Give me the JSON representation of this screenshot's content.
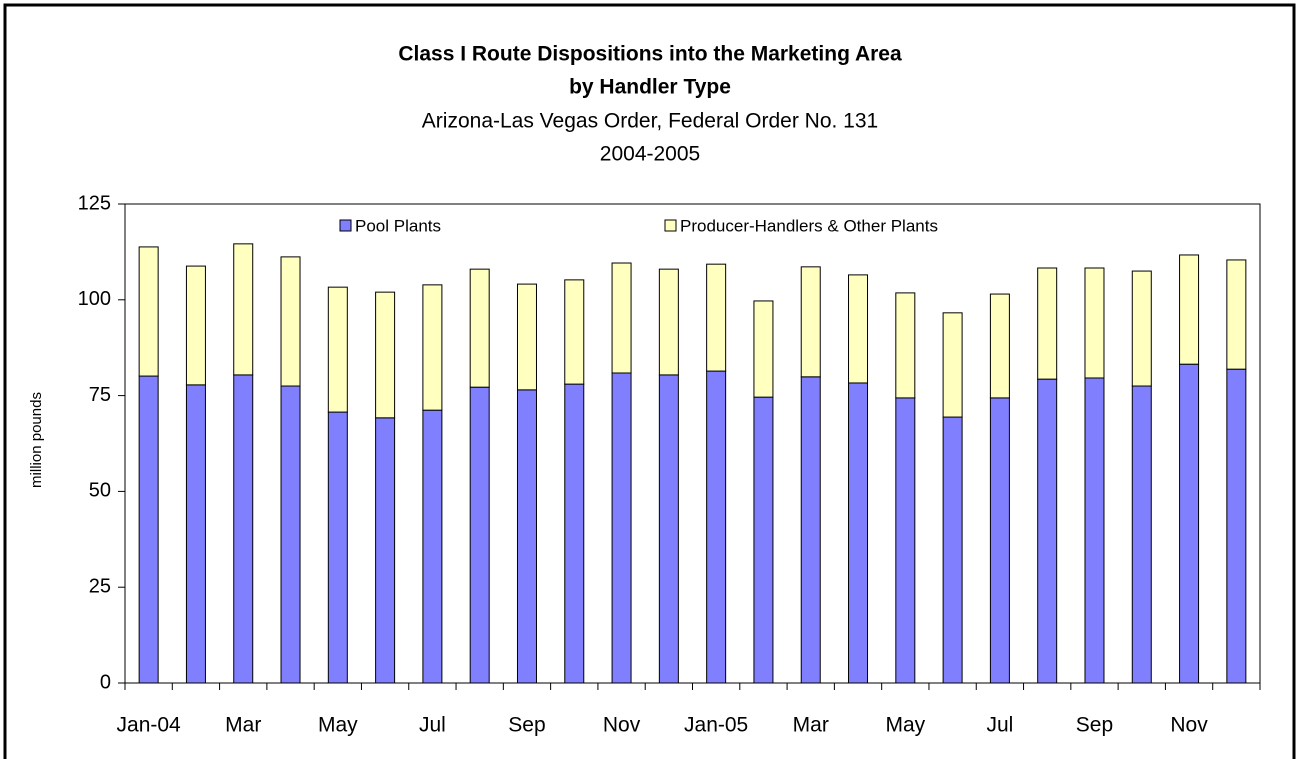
{
  "chart_data": {
    "type": "stacked_bar",
    "title": "Class I Route Dispositions into the Marketing Area",
    "title2": "by Handler Type",
    "subtitle": "Arizona-Las Vegas Order, Federal Order No. 131",
    "subtitle2": "2004-2005",
    "y_label": "million pounds",
    "categories": [
      "Jan-04",
      null,
      "Mar",
      null,
      "May",
      null,
      "Jul",
      null,
      "Sep",
      null,
      "Nov",
      null,
      "Jan-05",
      null,
      "Mar",
      null,
      "May",
      null,
      "Jul",
      null,
      "Sep",
      null,
      "Nov",
      null
    ],
    "series": [
      {
        "name": "Pool Plants",
        "color": "#8080ff",
        "values": [
          80.1,
          77.8,
          80.4,
          77.5,
          70.7,
          69.2,
          71.2,
          77.2,
          76.5,
          78.0,
          80.9,
          80.4,
          81.4,
          74.6,
          79.9,
          78.3,
          74.4,
          69.4,
          74.4,
          79.3,
          79.6,
          77.5,
          83.2,
          81.9
        ]
      },
      {
        "name": "Producer-Handlers & Other Plants",
        "color": "#ffffc0",
        "values": [
          33.7,
          31.0,
          34.2,
          33.7,
          32.6,
          32.8,
          32.7,
          30.8,
          27.6,
          27.2,
          28.7,
          27.6,
          27.9,
          25.1,
          28.7,
          28.2,
          27.4,
          27.2,
          27.1,
          29.0,
          28.7,
          30.0,
          28.5,
          28.5
        ]
      }
    ],
    "ylim": [
      0,
      125
    ],
    "yticks": [
      0,
      25,
      50,
      75,
      100,
      125
    ],
    "grid": false,
    "legend": "top"
  }
}
